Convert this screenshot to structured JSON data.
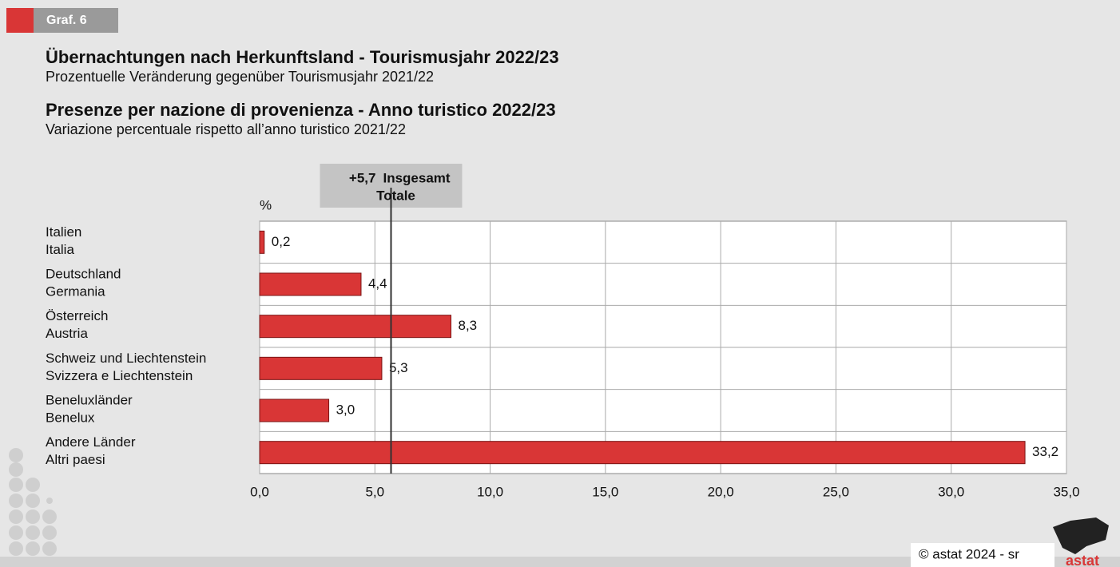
{
  "tag": "Graf. 6",
  "chart_data": {
    "type": "barh",
    "title": "Übernachtungen nach Herkunftsland - Tourismusjahr 2022/23",
    "subtitle": "Prozentuelle Veränderung gegenüber Tourismusjahr 2021/22",
    "title_it": "Presenze per nazione di provenienza - Anno turistico 2022/23",
    "subtitle_it": "Variazione percentuale rispetto all’anno turistico 2021/22",
    "unit_label": "%",
    "categories": [
      [
        "Italien",
        "Italia"
      ],
      [
        "Deutschland",
        "Germania"
      ],
      [
        "Österreich",
        "Austria"
      ],
      [
        "Schweiz und Liechtenstein",
        "Svizzera e Liechtenstein"
      ],
      [
        "Beneluxländer",
        "Benelux"
      ],
      [
        "Andere Länder",
        "Altri paesi"
      ]
    ],
    "values": [
      0.2,
      4.4,
      8.3,
      5.3,
      3.0,
      33.2
    ],
    "value_labels": [
      "0,2",
      "4,4",
      "8,3",
      "5,3",
      "3,0",
      "33,2"
    ],
    "color": "#d93636",
    "xlim": [
      0,
      35
    ],
    "xticks": [
      {
        "value": 0,
        "label": "0,0"
      },
      {
        "value": 5,
        "label": "5,0"
      },
      {
        "value": 10,
        "label": "10,0"
      },
      {
        "value": 15,
        "label": "15,0"
      },
      {
        "value": 20,
        "label": "20,0"
      },
      {
        "value": 25,
        "label": "25,0"
      },
      {
        "value": 30,
        "label": "30,0"
      },
      {
        "value": 35,
        "label": "35,0"
      }
    ],
    "grid": true,
    "reference": {
      "value": 5.7,
      "label": "+5,7",
      "text": [
        "Insgesamt",
        "Totale"
      ]
    }
  },
  "footer": {
    "copyright": "© astat 2024 - sr",
    "logo": "astat"
  }
}
